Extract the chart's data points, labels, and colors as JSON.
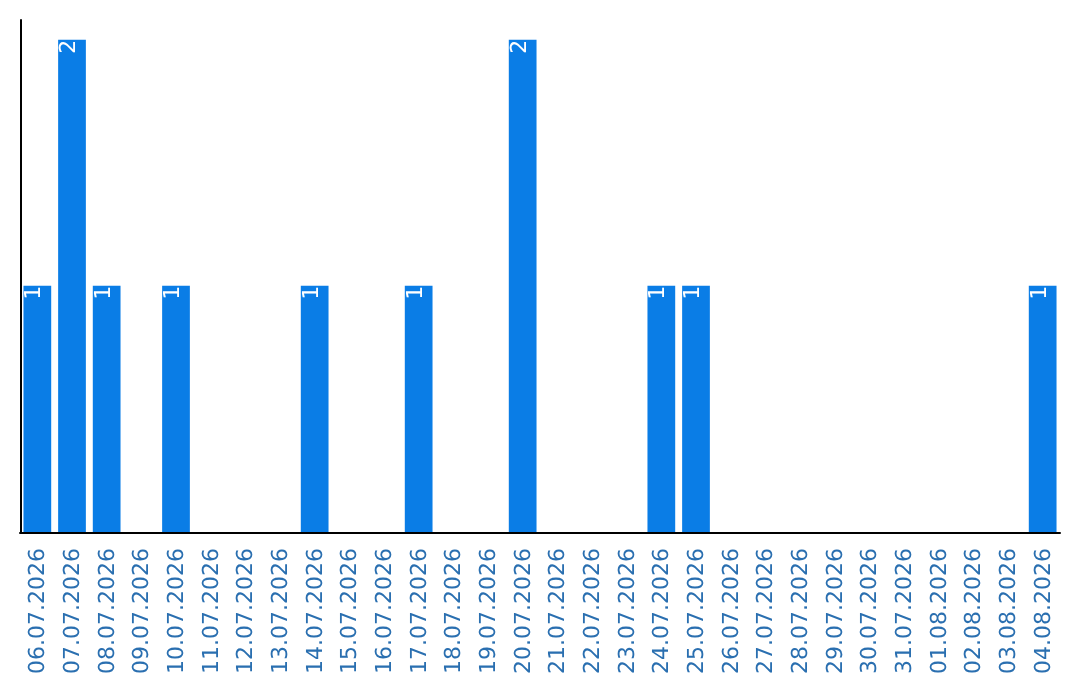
{
  "chart_data": {
    "type": "bar",
    "categories": [
      "06.07.2026",
      "07.07.2026",
      "08.07.2026",
      "09.07.2026",
      "10.07.2026",
      "11.07.2026",
      "12.07.2026",
      "13.07.2026",
      "14.07.2026",
      "15.07.2026",
      "16.07.2026",
      "17.07.2026",
      "18.07.2026",
      "19.07.2026",
      "20.07.2026",
      "21.07.2026",
      "22.07.2026",
      "23.07.2026",
      "24.07.2026",
      "25.07.2026",
      "26.07.2026",
      "27.07.2026",
      "28.07.2026",
      "29.07.2026",
      "30.07.2026",
      "31.07.2026",
      "01.08.2026",
      "02.08.2026",
      "03.08.2026",
      "04.08.2026"
    ],
    "values": [
      1,
      2,
      1,
      0,
      1,
      0,
      0,
      0,
      1,
      0,
      0,
      1,
      0,
      0,
      2,
      0,
      0,
      0,
      1,
      1,
      0,
      0,
      0,
      0,
      0,
      0,
      0,
      0,
      0,
      1
    ],
    "value_labels": [
      "1",
      "2",
      "1",
      null,
      "1",
      null,
      null,
      null,
      "1",
      null,
      null,
      "1",
      null,
      null,
      "2",
      null,
      null,
      null,
      "1",
      "1",
      null,
      null,
      null,
      null,
      null,
      null,
      null,
      null,
      null,
      "1"
    ],
    "color": "#0a7de6",
    "grid": false,
    "tick_labels": "x"
  }
}
